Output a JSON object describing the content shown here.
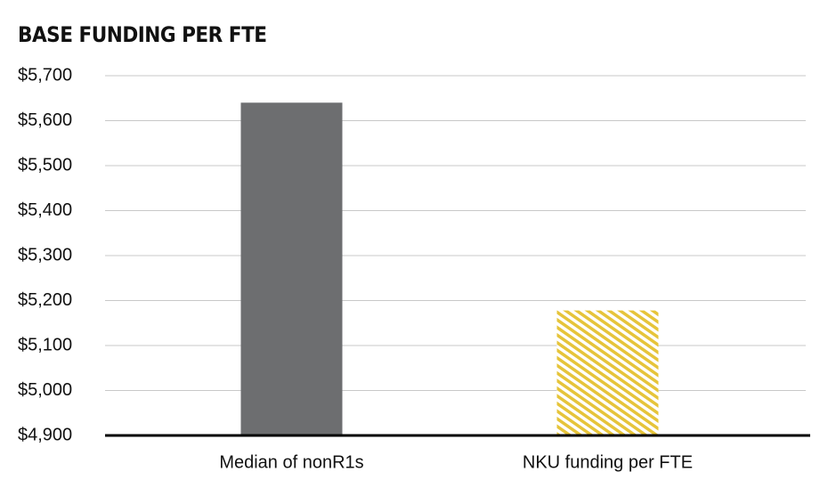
{
  "chart_data": {
    "type": "bar",
    "title": "BASE FUNDING PER FTE",
    "categories": [
      "Median of nonR1s",
      "NKU funding per FTE"
    ],
    "values": [
      5640,
      5178
    ],
    "colors": [
      "#6d6e70",
      "#e6c43a"
    ],
    "patterns": [
      "solid",
      "hatch"
    ],
    "ylim": [
      4900,
      5700
    ],
    "yticks": [
      {
        "value": 4900,
        "label": "$4,900"
      },
      {
        "value": 5000,
        "label": "$5,000"
      },
      {
        "value": 5100,
        "label": "$5,100"
      },
      {
        "value": 5200,
        "label": "$5,200"
      },
      {
        "value": 5300,
        "label": "$5,300"
      },
      {
        "value": 5400,
        "label": "$5,400"
      },
      {
        "value": 5500,
        "label": "$5,500"
      },
      {
        "value": 5600,
        "label": "$5,600"
      },
      {
        "value": 5700,
        "label": "$5,700"
      }
    ],
    "grid": true
  }
}
